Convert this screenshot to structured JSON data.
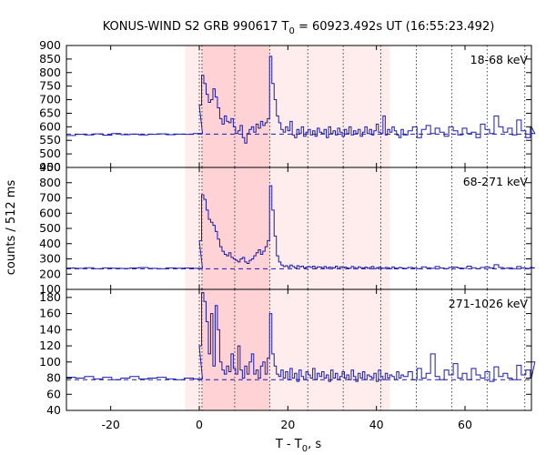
{
  "title": "KONUS-WIND S2 GRB 990617 T",
  "title_sub": "0",
  "title_rest": " = 60923.492s UT (16:55:23.492)",
  "xlabel": "T - T",
  "xlabel_sub": "0",
  "xlabel_rest": ", s",
  "ylabel": "counts / 512 ms",
  "colors": {
    "trace": "#1a1ab0",
    "shade_light": "#ffecec",
    "shade_dark": "#ffd2d6",
    "axis": "#000000"
  },
  "chart_data": {
    "type": "line",
    "xlim": [
      -30,
      75
    ],
    "x_ticks": [
      -20,
      0,
      20,
      40,
      60
    ],
    "shaded_regions": [
      {
        "from": -3.2,
        "to": 43,
        "shade": "light"
      },
      {
        "from": 0.6,
        "to": 15.9,
        "shade": "dark"
      }
    ],
    "vertical_lines": [
      0,
      0.6,
      8,
      15.9,
      24.5,
      32.5,
      41,
      49,
      57,
      65,
      73.5
    ],
    "panels": [
      {
        "label": "18-68 keV",
        "ylim": [
          450,
          900
        ],
        "y_ticks": [
          450,
          500,
          550,
          600,
          650,
          700,
          750,
          800,
          850,
          900
        ],
        "background": 573,
        "series": [
          {
            "x0": -30,
            "dt": 2.048,
            "values": [
              568,
              572,
              570,
              574,
              569,
              575,
              571,
              573,
              570,
              572,
              574,
              571,
              573,
              572,
              575
            ]
          },
          {
            "x0": 0,
            "dt": 0.512,
            "values": [
              680,
              790,
              760,
              720,
              690,
              700,
              740,
              710,
              670,
              630,
              610,
              640,
              620,
              615,
              630,
              600,
              575,
              585,
              605,
              560,
              540,
              575,
              590,
              600,
              580,
              610,
              595,
              620,
              605,
              615,
              630,
              860,
              760,
              700,
              640,
              615,
              590,
              580,
              600,
              585,
              620,
              570,
              560,
              590,
              575,
              600,
              565,
              580,
              590,
              570,
              585,
              565,
              595,
              580,
              575,
              590,
              560,
              600,
              575,
              585,
              570,
              595,
              580,
              565,
              590,
              575,
              600,
              570,
              585,
              575,
              590,
              565,
              580,
              600,
              575,
              590,
              570,
              585,
              610,
              580,
              575,
              640,
              570,
              590,
              580,
              600,
              585,
              570,
              560,
              590
            ],
            "note": ""
          },
          {
            "x0": 46.08,
            "dt": 1.024,
            "values": [
              570,
              585,
              600,
              560,
              590,
              605,
              575,
              595,
              580,
              565,
              600,
              585,
              570,
              595,
              575,
              580,
              560,
              610,
              590,
              575,
              640,
              600,
              580,
              595,
              570,
              625,
              585,
              560,
              600,
              575
            ]
          }
        ]
      },
      {
        "label": "68-271 keV",
        "ylim": [
          100,
          900
        ],
        "y_ticks": [
          100,
          200,
          300,
          400,
          500,
          600,
          700,
          800,
          900
        ],
        "background": 235,
        "series": [
          {
            "x0": -30,
            "dt": 2.048,
            "values": [
              240,
              238,
              242,
              236,
              241,
              239,
              237,
              240,
              243,
              238,
              236,
              241,
              239,
              240,
              238
            ]
          },
          {
            "x0": 0,
            "dt": 0.512,
            "values": [
              420,
              720,
              690,
              620,
              560,
              540,
              520,
              480,
              430,
              380,
              350,
              330,
              320,
              340,
              310,
              300,
              290,
              280,
              300,
              310,
              280,
              270,
              290,
              300,
              320,
              340,
              360,
              330,
              350,
              380,
              420,
              780,
              620,
              450,
              320,
              280,
              260,
              250,
              255,
              245,
              260,
              250,
              240,
              255,
              248,
              252,
              240,
              246,
              250,
              244,
              252,
              238,
              248,
              246,
              242,
              250,
              238,
              246,
              244,
              240,
              252,
              236,
              248,
              242,
              246,
              240,
              238,
              250,
              244,
              236,
              248,
              242,
              240,
              246,
              238,
              244,
              250,
              236,
              242,
              246,
              240,
              238,
              244,
              242,
              236,
              248,
              240,
              238,
              244,
              240
            ]
          },
          {
            "x0": 46.08,
            "dt": 1.024,
            "values": [
              238,
              244,
              240,
              236,
              248,
              242,
              238,
              250,
              240,
              236,
              244,
              246,
              240,
              238,
              252,
              242,
              236,
              244,
              248,
              240,
              262,
              244,
              238,
              242,
              236,
              250,
              240,
              238,
              244,
              240
            ]
          }
        ]
      },
      {
        "label": "271-1026 keV",
        "ylim": [
          40,
          190
        ],
        "y_ticks": [
          40,
          60,
          80,
          100,
          120,
          140,
          160,
          180
        ],
        "background": 78,
        "series": [
          {
            "x0": -30,
            "dt": 2.048,
            "values": [
              81,
              80,
              82,
              79,
              81,
              78,
              80,
              82,
              79,
              80,
              81,
              79,
              78,
              80,
              79
            ]
          },
          {
            "x0": 0,
            "dt": 0.512,
            "values": [
              120,
              186,
              175,
              150,
              110,
              160,
              95,
              170,
              140,
              100,
              90,
              85,
              95,
              88,
              110,
              92,
              85,
              120,
              90,
              80,
              95,
              85,
              100,
              110,
              85,
              90,
              80,
              95,
              100,
              85,
              105,
              160,
              110,
              95,
              85,
              82,
              90,
              80,
              88,
              78,
              92,
              80,
              86,
              76,
              90,
              82,
              78,
              88,
              84,
              80,
              92,
              78,
              86,
              82,
              88,
              80,
              84,
              76,
              90,
              80,
              86,
              78,
              82,
              88,
              80,
              84,
              78,
              90,
              82,
              76,
              86,
              80,
              88,
              78,
              84,
              82,
              80,
              86,
              76,
              90,
              82,
              78,
              86,
              80,
              84,
              82,
              78,
              88,
              80,
              84
            ]
          },
          {
            "x0": 46.08,
            "dt": 1.024,
            "values": [
              82,
              88,
              78,
              92,
              80,
              86,
              110,
              82,
              78,
              90,
              84,
              98,
              80,
              86,
              78,
              92,
              84,
              80,
              88,
              76,
              94,
              82,
              86,
              80,
              78,
              96,
              84,
              90,
              80,
              100
            ]
          }
        ]
      }
    ]
  }
}
